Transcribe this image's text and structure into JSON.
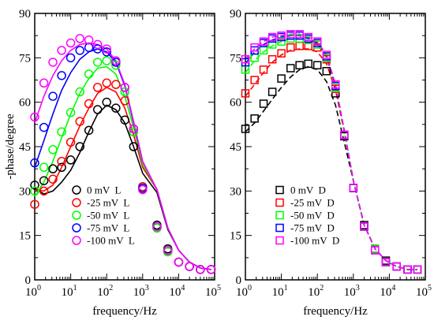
{
  "chart_data": [
    {
      "type": "line",
      "panel": "left",
      "xlabel": "frequency/Hz",
      "ylabel": "-phase/degree",
      "x_scale": "log",
      "xlim": [
        1,
        100000
      ],
      "ylim": [
        0,
        90
      ],
      "x_ticks": [
        1,
        10,
        100,
        1000,
        10000,
        100000
      ],
      "x_tick_labels": [
        {
          "base": "10",
          "exp": "0"
        },
        {
          "base": "10",
          "exp": "1"
        },
        {
          "base": "10",
          "exp": "2"
        },
        {
          "base": "10",
          "exp": "3"
        },
        {
          "base": "10",
          "exp": "4"
        },
        {
          "base": "10",
          "exp": "5"
        }
      ],
      "y_ticks": [
        0,
        15,
        30,
        45,
        60,
        75,
        90
      ],
      "y_tick_labels": [
        "0",
        "15",
        "30",
        "45",
        "60",
        "75",
        "90"
      ],
      "legend_placement": "lower-left",
      "marker": "circle",
      "line_style": "solid",
      "x": [
        1,
        1.8,
        3.2,
        5.6,
        10,
        18,
        32,
        56,
        100,
        180,
        320,
        560,
        1000,
        2500,
        5000,
        10000,
        20000,
        40000,
        80000
      ],
      "series": [
        {
          "name": "0 mV  L",
          "color": "#000000",
          "markers": [
            32.0,
            33.5,
            37.5,
            38.0,
            40.5,
            45.0,
            50.5,
            57.5,
            60.0,
            58.0,
            54.0,
            45.0,
            30.5,
            18.5,
            10.5,
            6.0,
            4.5,
            3.5,
            3.5
          ],
          "fit": [
            31,
            29,
            30,
            33,
            37,
            43,
            50,
            56,
            59,
            57.5,
            53,
            45,
            36,
            29.5,
            17,
            10,
            6,
            4,
            3.5
          ]
        },
        {
          "name": "-25 mV  L",
          "color": "#ff0000",
          "markers": [
            25.5,
            30.0,
            34.0,
            40.0,
            46.5,
            53.5,
            59.5,
            65.0,
            66.5,
            66.0,
            60.5,
            50.0,
            31.5,
            17.5,
            9.5,
            6.0,
            4.5,
            3.5,
            3.5
          ],
          "fit": [
            30.5,
            30,
            32,
            38,
            45,
            52,
            58,
            63,
            65,
            63.5,
            58,
            49,
            38,
            30.5,
            17.5,
            10,
            6,
            4,
            3.5
          ]
        },
        {
          "name": "-50 mV  L",
          "color": "#00ff00",
          "markers": [
            30.0,
            38.0,
            44.0,
            50.0,
            56.5,
            63.5,
            69.5,
            73.5,
            74.0,
            72.5,
            63.5,
            50.0,
            31.0,
            17.5,
            9.5,
            6.0,
            4.5,
            3.5,
            3.5
          ],
          "fit": [
            28,
            33,
            40,
            48,
            56,
            63,
            68,
            71.5,
            72,
            69.5,
            62,
            51.5,
            39,
            30.5,
            17.5,
            10,
            6,
            4,
            3.5
          ]
        },
        {
          "name": "-75 mV  L",
          "color": "#0000ff",
          "markers": [
            39.5,
            51.5,
            62.0,
            69.0,
            75.0,
            77.5,
            78.5,
            78.0,
            77.0,
            73.5,
            65.0,
            51.0,
            31.0,
            18.0,
            10.0,
            6.0,
            4.5,
            3.5,
            3.5
          ],
          "fit": [
            38,
            47,
            56,
            64,
            70,
            74.5,
            77,
            78,
            77,
            73.5,
            65.5,
            53,
            40,
            30.5,
            17.5,
            10,
            6,
            4,
            3.5
          ]
        },
        {
          "name": "-100 mV  L",
          "color": "#ff00ff",
          "markers": [
            55.0,
            66.5,
            73.5,
            77.5,
            80.0,
            81.5,
            81.0,
            79.5,
            78.0,
            74.0,
            65.0,
            51.0,
            30.5,
            18.0,
            10.0,
            6.0,
            4.5,
            3.5,
            3.5
          ],
          "fit": [
            53,
            62,
            69,
            74,
            77.5,
            79.5,
            80,
            79.5,
            78,
            74,
            66,
            53.5,
            40,
            30.5,
            17.5,
            10,
            6,
            4,
            3.5
          ]
        }
      ]
    },
    {
      "type": "line",
      "panel": "right",
      "xlabel": "frequency/Hz",
      "ylabel": "",
      "x_scale": "log",
      "xlim": [
        1,
        100000
      ],
      "ylim": [
        0,
        90
      ],
      "x_ticks": [
        1,
        10,
        100,
        1000,
        10000,
        100000
      ],
      "x_tick_labels": [
        {
          "base": "10",
          "exp": "0"
        },
        {
          "base": "10",
          "exp": "1"
        },
        {
          "base": "10",
          "exp": "2"
        },
        {
          "base": "10",
          "exp": "3"
        },
        {
          "base": "10",
          "exp": "4"
        },
        {
          "base": "10",
          "exp": "5"
        }
      ],
      "y_ticks": [
        0,
        15,
        30,
        45,
        60,
        75,
        90
      ],
      "y_tick_labels": [
        "0",
        "15",
        "30",
        "45",
        "60",
        "75",
        "90"
      ],
      "legend_placement": "lower-left",
      "marker": "square",
      "line_style": "dashed",
      "x": [
        1,
        1.8,
        3.2,
        5.6,
        10,
        18,
        32,
        56,
        100,
        180,
        320,
        560,
        1000,
        2000,
        4000,
        8000,
        16000,
        32000,
        60000
      ],
      "series": [
        {
          "name": "0 mV  D",
          "color": "#000000",
          "markers": [
            51.0,
            54.5,
            59.5,
            63.5,
            68.0,
            71.5,
            72.5,
            73.0,
            72.5,
            70.5,
            63.0,
            48.5,
            31.0,
            18.5,
            10.5,
            6.5,
            4.5,
            3.5,
            3.5
          ],
          "fit": [
            50,
            53,
            57,
            61,
            65,
            68.5,
            71,
            72,
            71,
            67,
            59,
            46.5,
            33.5,
            18.5,
            10.5,
            6.5,
            4.5,
            3.5,
            3.5
          ]
        },
        {
          "name": "-25 mV  D",
          "color": "#ff0000",
          "markers": [
            63.0,
            67.5,
            71.0,
            74.5,
            76.5,
            78.5,
            79.0,
            79.0,
            78.5,
            74.5,
            64.5,
            49.0,
            31.0,
            18.0,
            10.5,
            6.0,
            4.5,
            3.5,
            3.5
          ],
          "fit": [
            62,
            66,
            70,
            73.5,
            76,
            77.5,
            78,
            78,
            77,
            73,
            64,
            50,
            33.5,
            18.5,
            10.5,
            6.5,
            4.5,
            3.5,
            3.5
          ]
        },
        {
          "name": "-50 mV  D",
          "color": "#00ff00",
          "markers": [
            71.0,
            75.0,
            77.5,
            79.5,
            80.5,
            81.5,
            81.5,
            81.0,
            79.5,
            75.0,
            65.0,
            49.0,
            31.0,
            18.0,
            10.5,
            6.0,
            4.5,
            3.5,
            3.5
          ],
          "fit": [
            70,
            74,
            77,
            79,
            80.5,
            81.5,
            81.5,
            81,
            79.5,
            75,
            65.5,
            50.5,
            33.5,
            18.5,
            10.5,
            6.5,
            4.5,
            3.5,
            3.5
          ]
        },
        {
          "name": "-75 mV  D",
          "color": "#0000ff",
          "markers": [
            73.5,
            77.5,
            80.0,
            81.5,
            82.0,
            82.5,
            82.5,
            81.5,
            80.0,
            75.5,
            65.5,
            49.0,
            31.0,
            18.0,
            10.0,
            6.0,
            4.5,
            3.5,
            3.5
          ],
          "fit": [
            73,
            77,
            79.5,
            81,
            82,
            82.5,
            82.5,
            81.5,
            80,
            75.5,
            65.5,
            50.5,
            33.5,
            18.5,
            10.5,
            6.5,
            4.5,
            3.5,
            3.5
          ]
        },
        {
          "name": "-100 mV  D",
          "color": "#ff00ff",
          "markers": [
            74.5,
            78.5,
            80.5,
            82.0,
            82.5,
            83.0,
            83.0,
            82.0,
            80.5,
            76.0,
            66.0,
            49.0,
            31.0,
            18.0,
            10.0,
            6.0,
            4.5,
            3.5,
            3.5
          ],
          "fit": [
            74.5,
            78,
            80.5,
            82,
            82.5,
            83,
            83,
            82,
            80.5,
            76,
            66,
            50.5,
            33.5,
            18.5,
            10.5,
            6.5,
            4.5,
            3.5,
            3.5
          ]
        }
      ]
    }
  ]
}
